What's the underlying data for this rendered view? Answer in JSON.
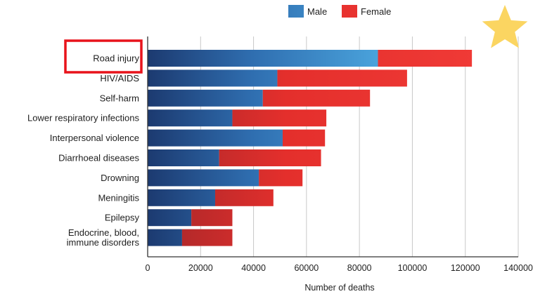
{
  "chart_data": {
    "type": "bar",
    "orientation": "horizontal",
    "stacked": true,
    "categories": [
      "Road injury",
      "HIV/AIDS",
      "Self-harm",
      "Lower respiratory infections",
      "Interpersonal violence",
      "Diarrhoeal diseases",
      "Drowning",
      "Meningitis",
      "Epilepsy",
      "Endocrine, blood, immune disorders"
    ],
    "category_lines": [
      [
        "Road injury"
      ],
      [
        "HIV/AIDS"
      ],
      [
        "Self-harm"
      ],
      [
        "Lower respiratory infections"
      ],
      [
        "Interpersonal violence"
      ],
      [
        "Diarrhoeal diseases"
      ],
      [
        "Drowning"
      ],
      [
        "Meningitis"
      ],
      [
        "Epilepsy"
      ],
      [
        "Endocrine, blood,",
        "immune disorders"
      ]
    ],
    "series": [
      {
        "name": "Male",
        "color": "#3a8fd0",
        "values": [
          87000,
          49000,
          43500,
          32000,
          51000,
          27000,
          42000,
          25500,
          16500,
          13000
        ]
      },
      {
        "name": "Female",
        "color": "#e8312c",
        "values": [
          35500,
          49000,
          40500,
          35500,
          16000,
          38500,
          16500,
          22000,
          15500,
          19000
        ]
      }
    ],
    "xlabel": "Number of deaths",
    "ylabel": "",
    "xlim": [
      0,
      140000
    ],
    "xticks": [
      0,
      20000,
      40000,
      60000,
      80000,
      100000,
      120000,
      140000
    ],
    "xtick_labels": [
      "0",
      "20000",
      "40000",
      "60000",
      "80000",
      "100000",
      "120000",
      "140000"
    ],
    "grid": "vertical",
    "legend_position": "top-right",
    "highlighted_category": "Road injury",
    "annotation_colors": {
      "highlight_box": "#e8131b",
      "star": "#fbd561"
    }
  }
}
